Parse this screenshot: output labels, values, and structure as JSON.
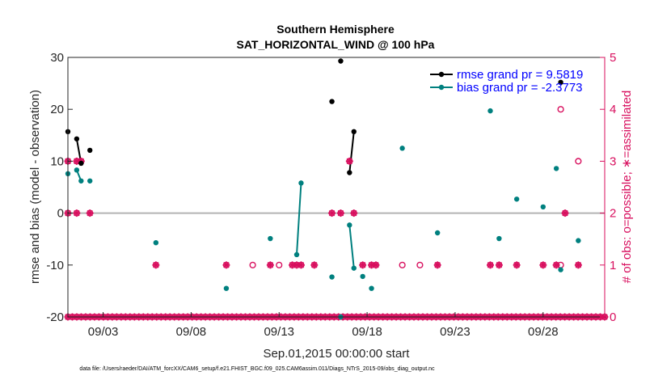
{
  "colors": {
    "rmse": "#000000",
    "bias": "#00807f",
    "obs": "#d80f5e",
    "zero_line": "#b3b3b3",
    "legend_text": "#0000ff"
  },
  "chart_data": {
    "type": "scatter",
    "title": "Southern Hemisphere",
    "subtitle": "SAT_HORIZONTAL_WIND @ 100 hPa",
    "xlabel": "Sep.01,2015 00:00:00 start",
    "ylabel": "rmse and bias (model - observation)",
    "y2label": "# of obs: o=possible; ∗=assimilated",
    "x_unit": "day of September 2015 (1 = Sep.01 00:00)",
    "xlim": [
      1,
      31.5
    ],
    "ylim": [
      -20,
      30
    ],
    "y2lim": [
      0,
      5
    ],
    "x_ticks": [
      {
        "x": 3,
        "label": "09/03"
      },
      {
        "x": 8,
        "label": "09/08"
      },
      {
        "x": 13,
        "label": "09/13"
      },
      {
        "x": 18,
        "label": "09/18"
      },
      {
        "x": 23,
        "label": "09/23"
      },
      {
        "x": 28,
        "label": "09/28"
      }
    ],
    "y_ticks": [
      30,
      20,
      10,
      0,
      -10,
      -20
    ],
    "y2_ticks": [
      5,
      4,
      3,
      2,
      1,
      0
    ],
    "grid": false,
    "legend_position": "top-right",
    "legend": [
      "rmse grand pr = 9.5819",
      "bias grand pr = -2.3773"
    ],
    "series": [
      {
        "name": "rmse grand pr = 9.5819",
        "points": [
          [
            1,
            15.7
          ],
          [
            1.5,
            14.3
          ],
          [
            1.75,
            9.6
          ],
          [
            2.25,
            12.1
          ],
          [
            16,
            21.5
          ],
          [
            16.5,
            29.3
          ],
          [
            17,
            7.8
          ],
          [
            17.25,
            15.7
          ],
          [
            29,
            25.2
          ]
        ],
        "segments": [
          [
            [
              1.5,
              14.3
            ],
            [
              1.75,
              9.6
            ]
          ],
          [
            [
              17,
              7.8
            ],
            [
              17.25,
              15.7
            ]
          ]
        ]
      },
      {
        "name": "bias grand pr = -2.3773",
        "points": [
          [
            1,
            7.6
          ],
          [
            1.5,
            8.3
          ],
          [
            1.75,
            6.2
          ],
          [
            2.25,
            6.2
          ],
          [
            6,
            -5.7
          ],
          [
            10,
            -14.5
          ],
          [
            12.5,
            -4.9
          ],
          [
            14,
            -8.0
          ],
          [
            14.25,
            5.8
          ],
          [
            16,
            -12.3
          ],
          [
            16.5,
            -20.0
          ],
          [
            17,
            -2.3
          ],
          [
            17.25,
            -10.6
          ],
          [
            17.75,
            -12.2
          ],
          [
            18.25,
            -14.5
          ],
          [
            20,
            12.5
          ],
          [
            22,
            -3.8
          ],
          [
            25,
            19.7
          ],
          [
            25.5,
            -4.9
          ],
          [
            26.5,
            2.7
          ],
          [
            28,
            1.2
          ],
          [
            28.75,
            8.6
          ],
          [
            29,
            -10.9
          ],
          [
            30,
            -5.3
          ]
        ],
        "segments": [
          [
            [
              1.5,
              8.3
            ],
            [
              1.75,
              6.2
            ]
          ],
          [
            [
              14,
              -8.0
            ],
            [
              14.25,
              5.8
            ]
          ],
          [
            [
              17,
              -2.3
            ],
            [
              17.25,
              -10.6
            ]
          ]
        ]
      },
      {
        "name": "obs possible",
        "points": [
          [
            1,
            3
          ],
          [
            1.5,
            3
          ],
          [
            1.75,
            3
          ],
          [
            1,
            2
          ],
          [
            1.5,
            2
          ],
          [
            2.25,
            2
          ],
          [
            6,
            1
          ],
          [
            10,
            1
          ],
          [
            11.5,
            1
          ],
          [
            12.5,
            1
          ],
          [
            13,
            1
          ],
          [
            13.75,
            1
          ],
          [
            14,
            1
          ],
          [
            14.25,
            1
          ],
          [
            15,
            1
          ],
          [
            16,
            2
          ],
          [
            16.5,
            2
          ],
          [
            17,
            3
          ],
          [
            17.25,
            2
          ],
          [
            17.75,
            1
          ],
          [
            18.25,
            1
          ],
          [
            18.5,
            1
          ],
          [
            20,
            1
          ],
          [
            21,
            1
          ],
          [
            22,
            1
          ],
          [
            25,
            1
          ],
          [
            25.5,
            1
          ],
          [
            26.5,
            1
          ],
          [
            28,
            1
          ],
          [
            28.75,
            1
          ],
          [
            29,
            1
          ],
          [
            29,
            4
          ],
          [
            29.25,
            2
          ],
          [
            30,
            3
          ],
          [
            30,
            1
          ]
        ]
      },
      {
        "name": "obs assimilated",
        "points": [
          [
            1,
            3
          ],
          [
            1.5,
            3
          ],
          [
            1.75,
            3
          ],
          [
            1,
            2
          ],
          [
            1.5,
            2
          ],
          [
            2.25,
            2
          ],
          [
            6,
            1
          ],
          [
            10,
            1
          ],
          [
            12.5,
            1
          ],
          [
            13.75,
            1
          ],
          [
            14,
            1
          ],
          [
            14.25,
            1
          ],
          [
            15,
            1
          ],
          [
            16,
            2
          ],
          [
            16.5,
            2
          ],
          [
            17,
            3
          ],
          [
            17.25,
            2
          ],
          [
            17.75,
            1
          ],
          [
            18.25,
            1
          ],
          [
            18.5,
            1
          ],
          [
            22,
            1
          ],
          [
            25,
            1
          ],
          [
            25.5,
            1
          ],
          [
            26.5,
            1
          ],
          [
            28,
            1
          ],
          [
            28.75,
            1
          ],
          [
            29.25,
            2
          ],
          [
            30,
            1
          ]
        ]
      }
    ],
    "zero_obs_row_x_range": [
      1,
      31.5
    ],
    "zero_obs_row_count": 122
  },
  "footer": {
    "data_file": "data file: /Users/raeder/DAI/ATM_forcXX/CAM6_setup/f.e21.FHIST_BGC.f09_025.CAM6assim.011/Diags_NTrS_2015-09/obs_diag_output.nc"
  }
}
